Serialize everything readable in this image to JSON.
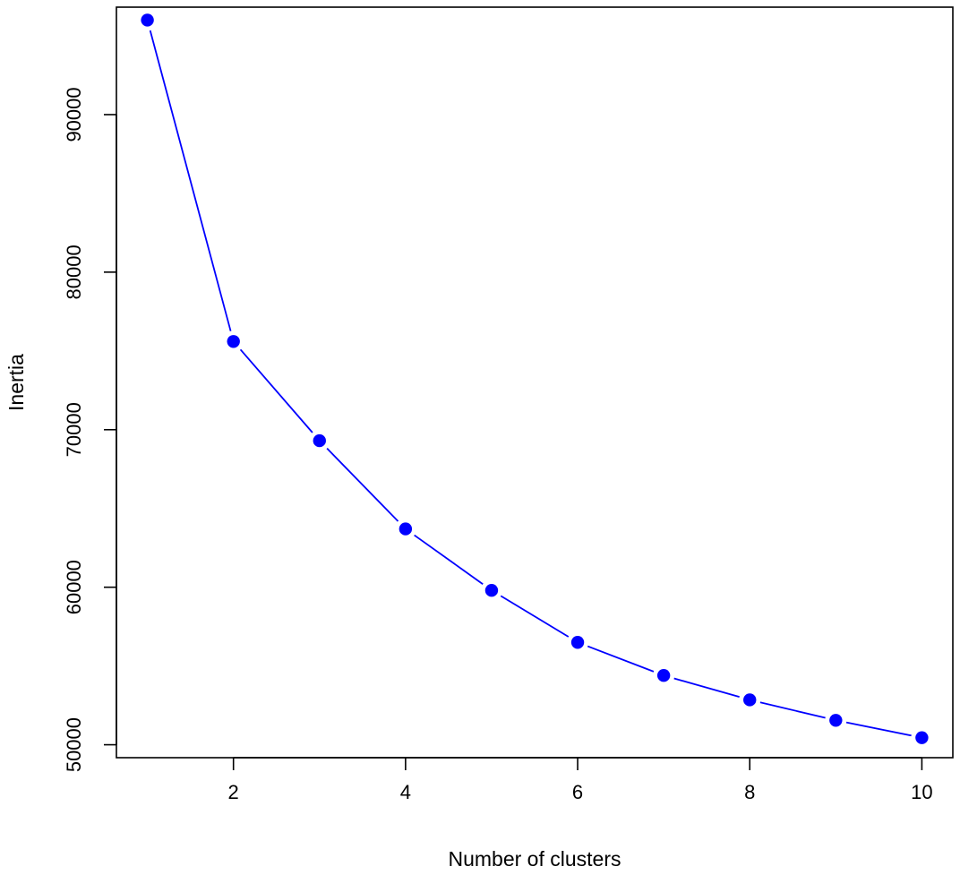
{
  "chart_data": {
    "type": "line",
    "title": "",
    "xlabel": "Number of clusters",
    "ylabel": "Inertia",
    "x": [
      1,
      2,
      3,
      4,
      5,
      6,
      7,
      8,
      9,
      10
    ],
    "series": [
      {
        "values": [
          96000,
          75600,
          69300,
          63700,
          59800,
          56500,
          54400,
          52850,
          51550,
          50450
        ],
        "color": "#0000ff"
      }
    ],
    "x_ticks": [
      2,
      4,
      6,
      8,
      10
    ],
    "y_ticks": [
      50000,
      60000,
      70000,
      80000,
      90000
    ],
    "x_tick_labels": [
      "2",
      "4",
      "6",
      "8",
      "10"
    ],
    "y_tick_labels": [
      "50000",
      "60000",
      "70000",
      "80000",
      "90000"
    ],
    "xlim": [
      0.64,
      10.36
    ],
    "ylim": [
      49180,
      96820
    ],
    "grid": false,
    "legend": "none",
    "marker": "filled-circle",
    "line_color": "#0000ff",
    "marker_color": "#0000ff"
  }
}
